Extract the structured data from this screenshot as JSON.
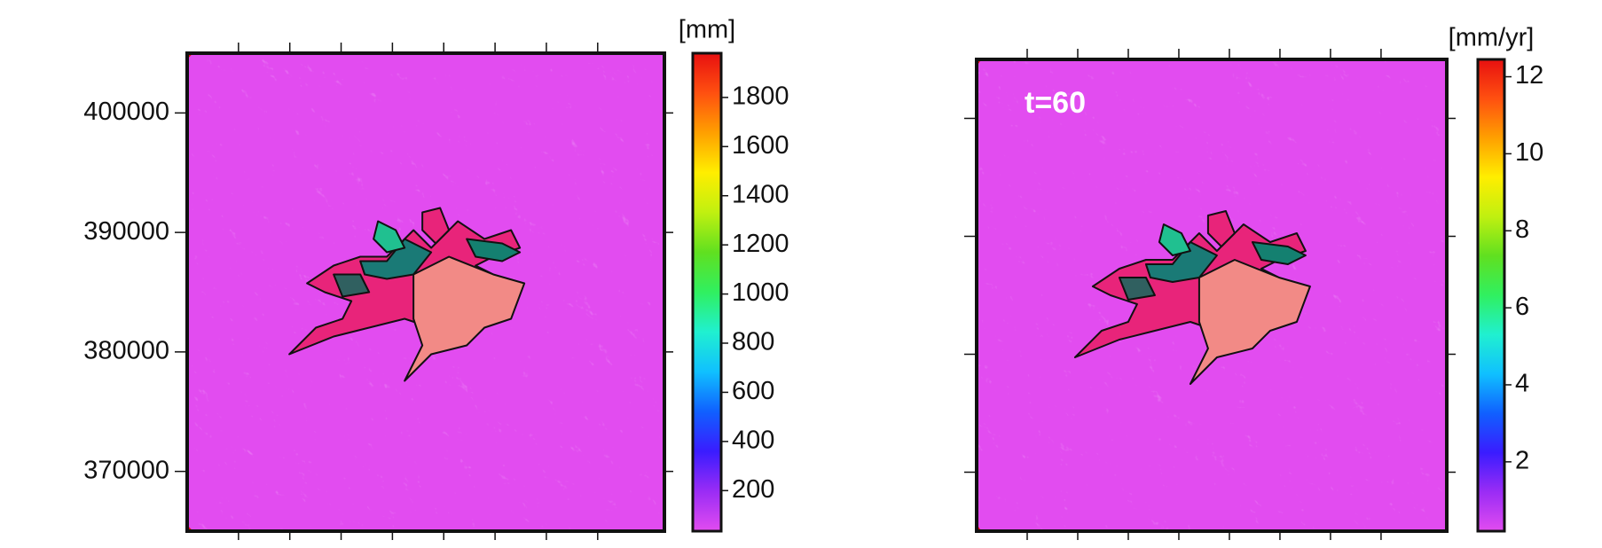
{
  "chart_data": [
    {
      "type": "map",
      "colorbar_label": "[mm]",
      "ylim": [
        365000,
        405000
      ],
      "yticks": [
        370000,
        380000,
        390000,
        400000
      ],
      "clim": [
        35,
        1980
      ],
      "cticks": [
        200,
        400,
        600,
        800,
        1000,
        1200,
        1400,
        1600,
        1800
      ],
      "colormap": [
        "#e24cf0",
        "#9a2cf5",
        "#3a1cff",
        "#1060ff",
        "#10c0ff",
        "#20f0d0",
        "#30f060",
        "#60e020",
        "#c0f010",
        "#ffee00",
        "#ffa000",
        "#ff5010",
        "#e81010"
      ]
    },
    {
      "type": "map",
      "colorbar_label": "[mm/yr]",
      "annotation": "t=60",
      "ylim": [
        365000,
        405000
      ],
      "clim": [
        0.2,
        12.45
      ],
      "cticks": [
        2,
        4,
        6,
        8,
        10,
        12
      ],
      "colormap": [
        "#e24cf0",
        "#9a2cf5",
        "#3a1cff",
        "#1060ff",
        "#10c0ff",
        "#20f0d0",
        "#30f060",
        "#60e020",
        "#c0f010",
        "#ffee00",
        "#ffa000",
        "#ff5010",
        "#e81010"
      ]
    }
  ]
}
